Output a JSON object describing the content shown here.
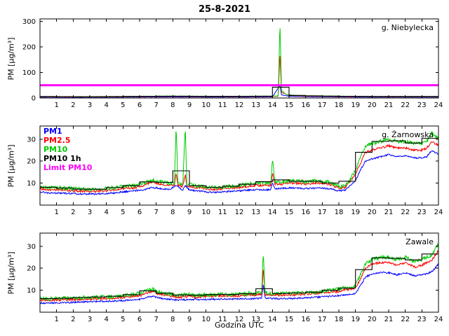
{
  "title": "25-8-2021",
  "xlabel": "Godzina UTC",
  "ylabel": "PM [µg/m³]",
  "limit_pm10": 50,
  "legend": [
    {
      "label": "PM1",
      "color": "#0000ff"
    },
    {
      "label": "PM2.5",
      "color": "#ff0000"
    },
    {
      "label": "PM10",
      "color": "#00cc00"
    },
    {
      "label": "PM10 1h",
      "color": "#000000"
    },
    {
      "label": "Limit PM10",
      "color": "#ff00ff"
    }
  ],
  "chart_data": [
    {
      "type": "line",
      "station": "g. Niebylecka",
      "xlim": [
        0,
        24
      ],
      "xticks": [
        1,
        2,
        3,
        4,
        5,
        6,
        7,
        8,
        9,
        10,
        11,
        12,
        13,
        14,
        15,
        16,
        17,
        18,
        19,
        20,
        21,
        22,
        23,
        24
      ],
      "ylim": [
        0,
        310
      ],
      "yticks": [
        0,
        100,
        200,
        300
      ],
      "series": [
        {
          "name": "PM1",
          "color": "#0000ff",
          "x": [
            0,
            2,
            4,
            6,
            8,
            10,
            12,
            14,
            14.45,
            14.55,
            15,
            16,
            18,
            20,
            22,
            24
          ],
          "y": [
            3.5,
            3,
            3.2,
            3.8,
            4.2,
            3.8,
            3.8,
            4.2,
            50,
            12,
            7,
            5.5,
            4.2,
            3.5,
            3.5,
            3.5
          ]
        },
        {
          "name": "PM2.5",
          "color": "#ff0000",
          "x": [
            0,
            2,
            4,
            6,
            8,
            10,
            12,
            14,
            14.35,
            14.45,
            14.55,
            15,
            16,
            18,
            20,
            22,
            24
          ],
          "y": [
            5,
            4.2,
            4.5,
            5.5,
            6.2,
            5.5,
            5.5,
            6.2,
            6.8,
            180,
            22,
            10,
            7.5,
            6,
            5,
            5,
            5
          ]
        },
        {
          "name": "PM10",
          "color": "#00cc00",
          "x": [
            0,
            1,
            2,
            3,
            4,
            5,
            6,
            7,
            8,
            9,
            10,
            11,
            12,
            13,
            14,
            14.35,
            14.45,
            14.55,
            14.8,
            15,
            15.5,
            16,
            17,
            18,
            19,
            20,
            21,
            22,
            23,
            24
          ],
          "y": [
            6,
            5.5,
            5,
            5,
            5.5,
            6,
            6.5,
            7,
            7.5,
            7,
            6.5,
            6.5,
            6.5,
            7,
            7.5,
            8,
            300,
            30,
            15,
            12,
            10,
            9,
            8,
            7,
            6.5,
            6,
            6,
            6,
            6,
            6
          ]
        }
      ]
    },
    {
      "type": "line",
      "station": "g. Żarnowska",
      "xlim": [
        0,
        24
      ],
      "xticks": [
        1,
        2,
        3,
        4,
        5,
        6,
        7,
        8,
        9,
        10,
        11,
        12,
        13,
        14,
        15,
        16,
        17,
        18,
        19,
        20,
        21,
        22,
        23,
        24
      ],
      "ylim": [
        0,
        36
      ],
      "yticks": [
        10,
        20,
        30
      ],
      "series": [
        {
          "name": "PM1",
          "color": "#0000ff",
          "x": [
            0,
            0.5,
            1,
            2,
            3,
            4,
            5,
            6.3,
            6.7,
            7,
            7.8,
            8.2,
            8.6,
            8.75,
            9,
            9.8,
            10.2,
            10.8,
            11.3,
            12,
            12.5,
            13,
            13.9,
            14,
            14.15,
            15,
            16,
            17,
            17.6,
            17.9,
            18.4,
            18.7,
            19,
            19.3,
            19.6,
            20,
            20.5,
            21,
            21.5,
            22,
            22.5,
            23,
            23.3,
            23.6,
            24
          ],
          "y": [
            6,
            5.5,
            5.5,
            5.2,
            5,
            5.2,
            6,
            7,
            8,
            7.8,
            7,
            9,
            6.8,
            9,
            6.8,
            6.2,
            5.8,
            5.8,
            6.2,
            6.5,
            6.8,
            7,
            7,
            10,
            7.5,
            7.8,
            7.5,
            7.8,
            7.2,
            6.5,
            6.8,
            9,
            11,
            16,
            20,
            21,
            22,
            23,
            22,
            22.5,
            21.5,
            21.5,
            22,
            25,
            23
          ]
        },
        {
          "name": "PM2.5",
          "color": "#ff0000",
          "x": [
            0,
            0.5,
            1,
            2,
            3,
            4,
            5,
            5.8,
            6.3,
            6.7,
            7,
            7.3,
            7.8,
            8.1,
            8.2,
            8.3,
            8.6,
            8.75,
            8.85,
            9,
            9.3,
            9.8,
            10.2,
            10.8,
            11.3,
            12,
            12.5,
            13,
            13.5,
            13.9,
            14,
            14.15,
            14.5,
            15,
            15.5,
            16,
            16.5,
            17,
            17.3,
            17.6,
            17.9,
            18.1,
            18.4,
            18.7,
            19,
            19.3,
            19.6,
            20,
            20.5,
            21,
            21.5,
            22,
            22.5,
            23,
            23.3,
            23.6,
            24
          ],
          "y": [
            7.5,
            7,
            7,
            6.5,
            6.2,
            6.5,
            7.5,
            8,
            9,
            10.5,
            10,
            9.5,
            9,
            9,
            15,
            9,
            8.5,
            14,
            8.5,
            8.5,
            8,
            7.8,
            7.2,
            7.2,
            7.8,
            8,
            8.5,
            9,
            9,
            9,
            15,
            9.5,
            9.5,
            10,
            10,
            9.5,
            10,
            10,
            9.5,
            9,
            8.2,
            7.8,
            8.2,
            11,
            14,
            19,
            24,
            25,
            26,
            27,
            26,
            26,
            25,
            25,
            26,
            29,
            27
          ]
        },
        {
          "name": "PM10",
          "color": "#00cc00",
          "x": [
            0,
            0.5,
            1,
            2,
            3,
            4,
            5,
            5.8,
            6.3,
            6.7,
            7,
            7.3,
            7.8,
            8.1,
            8.2,
            8.3,
            8.6,
            8.75,
            8.85,
            9,
            9.3,
            9.8,
            10.2,
            10.8,
            11.3,
            12,
            12.5,
            13,
            13.5,
            13.9,
            14,
            14.15,
            14.5,
            15,
            15.5,
            16,
            16.5,
            17,
            17.3,
            17.6,
            17.9,
            18.1,
            18.4,
            18.7,
            19,
            19.3,
            19.6,
            20,
            20.5,
            21,
            21.5,
            22,
            22.5,
            23,
            23.3,
            23.6,
            24
          ],
          "y": [
            8.5,
            8,
            8,
            7.5,
            7,
            7.5,
            8.5,
            9,
            10,
            11.5,
            11,
            10.5,
            10,
            10,
            37,
            10,
            9.5,
            36,
            9.5,
            9.5,
            9,
            8.5,
            8,
            8,
            8.5,
            9,
            9.5,
            10,
            10,
            10,
            21,
            10.5,
            10.5,
            11,
            11,
            10.5,
            11,
            11,
            10.5,
            10,
            9,
            8.5,
            9,
            12,
            16,
            22,
            27,
            28,
            29,
            30,
            29,
            29,
            28,
            28,
            29,
            33,
            30
          ]
        }
      ]
    },
    {
      "type": "line",
      "station": "Zawale",
      "xlim": [
        0,
        24
      ],
      "xticks": [
        1,
        2,
        3,
        4,
        5,
        6,
        7,
        8,
        9,
        10,
        11,
        12,
        13,
        14,
        15,
        16,
        17,
        18,
        19,
        20,
        21,
        22,
        23,
        24
      ],
      "ylim": [
        0,
        36
      ],
      "yticks": [
        10,
        20,
        30
      ],
      "series": [
        {
          "name": "PM1",
          "color": "#0000ff",
          "x": [
            0,
            1,
            2,
            3,
            4,
            5,
            6,
            6.5,
            6.8,
            7,
            7.5,
            8,
            8.3,
            9,
            10,
            11,
            12,
            13,
            13.35,
            13.45,
            13.55,
            14,
            15,
            16,
            17,
            18,
            18.3,
            19,
            19.3,
            19.6,
            20,
            20.5,
            21,
            21.5,
            22,
            22.6,
            23,
            23.3,
            23.6,
            23.8,
            24
          ],
          "y": [
            4.2,
            4.2,
            4.5,
            4.8,
            5,
            5.2,
            5.8,
            7,
            7.2,
            6.8,
            6,
            5.8,
            5.5,
            5.8,
            5.8,
            6,
            6,
            6.2,
            6.5,
            13,
            6.5,
            6.2,
            6.2,
            6.5,
            7,
            7.5,
            7.8,
            8.5,
            12,
            16,
            17.5,
            18,
            18,
            17,
            18,
            16.5,
            17,
            17.5,
            18.5,
            20,
            22
          ]
        },
        {
          "name": "PM2.5",
          "color": "#ff0000",
          "x": [
            0,
            1,
            2,
            3,
            4,
            5,
            6,
            6.5,
            6.8,
            7,
            7.5,
            8,
            8.3,
            9,
            9.5,
            10,
            11,
            12,
            12.5,
            13,
            13.35,
            13.45,
            13.55,
            14,
            15,
            16,
            17,
            17.5,
            18,
            18.3,
            19,
            19.3,
            19.6,
            20,
            20.5,
            21,
            21.5,
            22,
            22.6,
            23,
            23.3,
            23.6,
            23.8,
            24
          ],
          "y": [
            5.5,
            5.5,
            5.8,
            6,
            6.2,
            6.8,
            7.5,
            9,
            9.5,
            8.5,
            7.8,
            7.2,
            6.8,
            7.2,
            6.8,
            7.2,
            7.5,
            7.5,
            7.8,
            7.8,
            8.2,
            20,
            8.2,
            7.8,
            7.8,
            8.2,
            8.8,
            9.2,
            9.5,
            10,
            11,
            15,
            20,
            22,
            22.5,
            22.5,
            21.5,
            22.5,
            20.5,
            21.5,
            22.5,
            23.5,
            26,
            28
          ]
        },
        {
          "name": "PM10",
          "color": "#00cc00",
          "x": [
            0,
            0.5,
            1,
            2,
            3,
            4,
            5,
            5.5,
            6,
            6.5,
            6.8,
            7,
            7.5,
            8,
            8.3,
            8.6,
            9,
            9.5,
            10,
            10.5,
            11,
            11.5,
            12,
            12.5,
            13,
            13.35,
            13.45,
            13.55,
            14,
            14.5,
            15,
            15.5,
            16,
            16.5,
            17,
            17.5,
            18,
            18.3,
            18.6,
            19,
            19.3,
            19.6,
            20,
            20.5,
            21,
            21.5,
            22,
            22.3,
            22.6,
            23,
            23.3,
            23.6,
            23.8,
            24
          ],
          "y": [
            6.5,
            6,
            6.2,
            6.5,
            6.8,
            7,
            7.5,
            8,
            8.5,
            10,
            10.5,
            9.5,
            8.5,
            8,
            7.5,
            8,
            8,
            7.5,
            8,
            8,
            8.2,
            8,
            8.2,
            8.5,
            8.5,
            9,
            28,
            9,
            8.5,
            8.5,
            8.5,
            8.8,
            9,
            9,
            9.5,
            10,
            10.5,
            11,
            10.5,
            12,
            17,
            22,
            24,
            25,
            25,
            24,
            25,
            24,
            23,
            24,
            25,
            26,
            29,
            31
          ]
        }
      ]
    }
  ]
}
